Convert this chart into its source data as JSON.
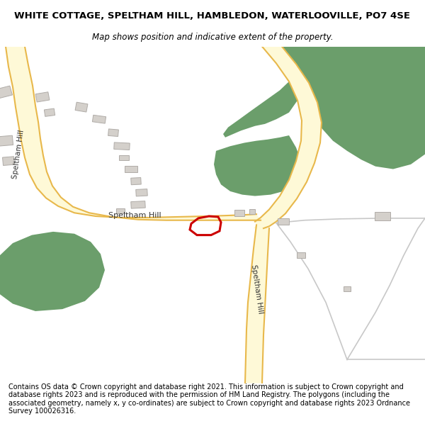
{
  "title_line1": "WHITE COTTAGE, SPELTHAM HILL, HAMBLEDON, WATERLOOVILLE, PO7 4SE",
  "title_line2": "Map shows position and indicative extent of the property.",
  "footer": "Contains OS data © Crown copyright and database right 2021. This information is subject to Crown copyright and database rights 2023 and is reproduced with the permission of HM Land Registry. The polygons (including the associated geometry, namely x, y co-ordinates) are subject to Crown copyright and database rights 2023 Ordnance Survey 100026316.",
  "bg_color": "#ffffff",
  "map_bg": "#ffffff",
  "road_fill": "#fef9d7",
  "road_edge": "#e8b84b",
  "green_color": "#6b9e6b",
  "building_color": "#d4d0cb",
  "building_edge": "#b0aca8",
  "plot_color": "#cc0000",
  "road_label_color": "#333333",
  "light_gray": "#c8c8c8",
  "title_fontsize": 9.5,
  "subtitle_fontsize": 8.5,
  "footer_fontsize": 7.0
}
